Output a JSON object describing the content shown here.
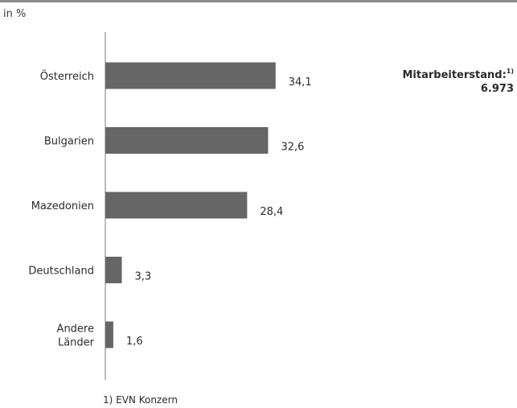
{
  "unit_label": "in %",
  "side_note": {
    "label": "Mitarbeiterstand:",
    "marker": "1)",
    "value": "6.973"
  },
  "footnote": "1)  EVN Konzern",
  "colors": {
    "bar": "#666666",
    "axis": "#777777"
  },
  "chart_data": {
    "type": "bar",
    "orientation": "horizontal",
    "categories": [
      [
        "Österreich"
      ],
      [
        "Bulgarien"
      ],
      [
        "Mazedonien"
      ],
      [
        "Deutschland"
      ],
      [
        "Andere",
        "Länder"
      ]
    ],
    "values": [
      34.1,
      32.6,
      28.4,
      3.3,
      1.6
    ],
    "value_labels": [
      "34,1",
      "32,6",
      "28,4",
      "3,3",
      "1,6"
    ],
    "xlim": [
      0,
      35
    ],
    "ylabel": "in %",
    "grid": false,
    "legend": "none"
  }
}
